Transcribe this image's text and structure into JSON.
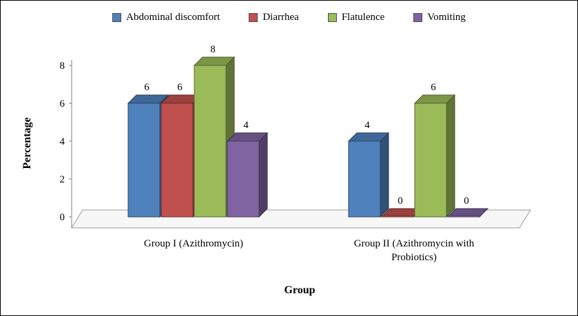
{
  "frame": {
    "background": "#ffffff",
    "border_color": "#000000"
  },
  "chart_data": {
    "type": "bar",
    "style": "3d-clustered-column",
    "title": "",
    "categories": [
      "Group I (Azithromycin)",
      "Group II (Azithromycin with Probiotics)"
    ],
    "series": [
      {
        "name": "Abdominal discomfort",
        "color": "#4F81BD",
        "values": [
          6,
          4
        ]
      },
      {
        "name": "Diarrhea",
        "color": "#C0504D",
        "values": [
          6,
          0
        ]
      },
      {
        "name": "Flatulence",
        "color": "#9BBB59",
        "values": [
          8,
          6
        ]
      },
      {
        "name": "Vomiting",
        "color": "#8064A2",
        "values": [
          4,
          0
        ]
      }
    ],
    "xlabel": "Group",
    "ylabel": "Percentage",
    "yticks": [
      0,
      2,
      4,
      6,
      8
    ],
    "ylim": [
      0,
      8
    ],
    "grid": false,
    "legend_position": "top",
    "data_labels": true
  }
}
